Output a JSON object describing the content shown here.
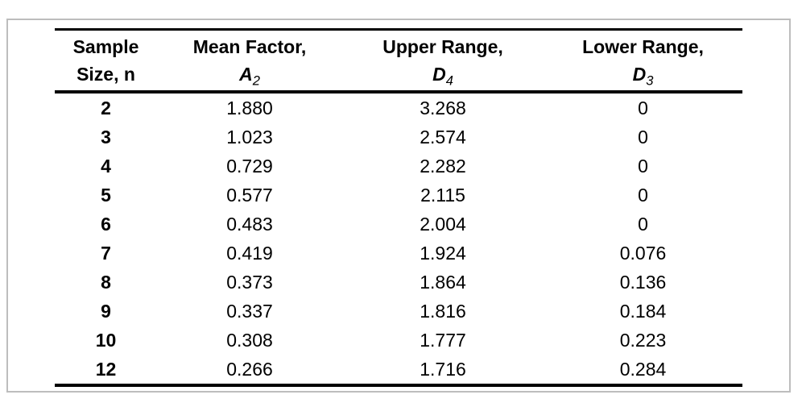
{
  "frame": {
    "border_color": "#bdbdbd"
  },
  "colors": {
    "rule": "#000000",
    "text": "#000000",
    "background": "#ffffff"
  },
  "table": {
    "columns": [
      {
        "id": "n",
        "line1": "Sample",
        "line2": "Size, n"
      },
      {
        "id": "a2",
        "line1": "Mean Factor,",
        "symbol": "A",
        "subscript": "2"
      },
      {
        "id": "d4",
        "line1": "Upper Range,",
        "symbol": "D",
        "subscript": "4"
      },
      {
        "id": "d3",
        "line1": "Lower Range,",
        "symbol": "D",
        "subscript": "3"
      }
    ],
    "rows": [
      [
        "2",
        "1.880",
        "3.268",
        "0"
      ],
      [
        "3",
        "1.023",
        "2.574",
        "0"
      ],
      [
        "4",
        "0.729",
        "2.282",
        "0"
      ],
      [
        "5",
        "0.577",
        "2.115",
        "0"
      ],
      [
        "6",
        "0.483",
        "2.004",
        "0"
      ],
      [
        "7",
        "0.419",
        "1.924",
        "0.076"
      ],
      [
        "8",
        "0.373",
        "1.864",
        "0.136"
      ],
      [
        "9",
        "0.337",
        "1.816",
        "0.184"
      ],
      [
        "10",
        "0.308",
        "1.777",
        "0.223"
      ],
      [
        "12",
        "0.266",
        "1.716",
        "0.284"
      ]
    ]
  }
}
